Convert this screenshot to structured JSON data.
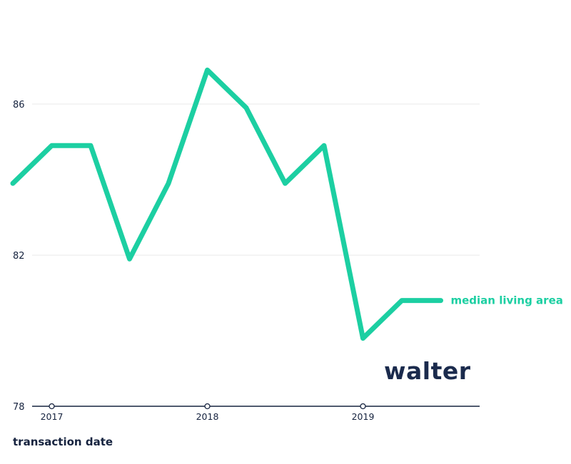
{
  "branding": {
    "logo_text": "walter"
  },
  "chart_data": {
    "type": "line",
    "title": "",
    "xlabel": "transaction date",
    "ylabel": "",
    "line_color": "#1ccfa2",
    "text_color": "#16233f",
    "grid_color": "#e9e9e9",
    "axis_color": "#16233f",
    "x": [
      2016.75,
      2017.0,
      2017.25,
      2017.5,
      2017.75,
      2018.0,
      2018.25,
      2018.5,
      2018.75,
      2019.0,
      2019.25,
      2019.5
    ],
    "series": [
      {
        "name": "median living area",
        "values": [
          83.9,
          84.9,
          84.9,
          81.9,
          83.9,
          86.9,
          85.9,
          83.9,
          84.9,
          79.8,
          80.8,
          80.8
        ]
      }
    ],
    "yticks": [
      78,
      82,
      86
    ],
    "xticks": [
      2017,
      2018,
      2019
    ],
    "ylim": [
      78,
      87.5
    ],
    "grid": "horizontal",
    "legend": "end-of-line label"
  }
}
